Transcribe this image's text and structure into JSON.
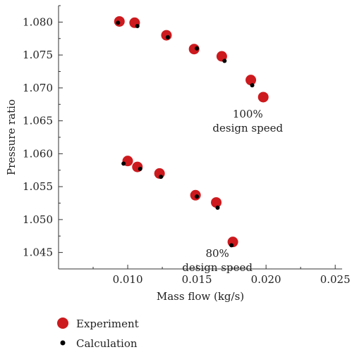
{
  "chart_data": {
    "type": "scatter",
    "xlabel": "Mass flow (kg/s)",
    "ylabel": "Pressure ratio",
    "xlim": [
      0.005,
      0.0255
    ],
    "ylim": [
      1.0425,
      1.0825
    ],
    "x_ticks": [
      0.01,
      0.015,
      0.02,
      0.025
    ],
    "x_tick_labels": [
      "0.010",
      "0.015",
      "0.020",
      "0.025"
    ],
    "y_ticks": [
      1.045,
      1.05,
      1.055,
      1.06,
      1.065,
      1.07,
      1.075,
      1.08
    ],
    "y_tick_labels": [
      "1.045",
      "1.050",
      "1.055",
      "1.060",
      "1.065",
      "1.070",
      "1.075",
      "1.080"
    ],
    "grid": false,
    "legend_position": "bottom-left",
    "series": [
      {
        "name": "Experiment",
        "color": "#cc1a1e",
        "marker": "large-circle",
        "points": [
          {
            "x": 0.0094,
            "y": 1.0801
          },
          {
            "x": 0.0105,
            "y": 1.0799
          },
          {
            "x": 0.0128,
            "y": 1.078
          },
          {
            "x": 0.0148,
            "y": 1.0759
          },
          {
            "x": 0.0168,
            "y": 1.0748
          },
          {
            "x": 0.0189,
            "y": 1.0712
          },
          {
            "x": 0.0198,
            "y": 1.0686
          },
          {
            "x": 0.01,
            "y": 1.0589
          },
          {
            "x": 0.0107,
            "y": 1.058
          },
          {
            "x": 0.0123,
            "y": 1.057
          },
          {
            "x": 0.0149,
            "y": 1.0537
          },
          {
            "x": 0.0164,
            "y": 1.0526
          },
          {
            "x": 0.0176,
            "y": 1.0466
          }
        ]
      },
      {
        "name": "Calculation",
        "color": "#000000",
        "marker": "small-dot",
        "points": [
          {
            "x": 0.0093,
            "y": 1.0799
          },
          {
            "x": 0.0107,
            "y": 1.0794
          },
          {
            "x": 0.0129,
            "y": 1.0777
          },
          {
            "x": 0.015,
            "y": 1.076
          },
          {
            "x": 0.017,
            "y": 1.0741
          },
          {
            "x": 0.019,
            "y": 1.0704
          },
          {
            "x": 0.0097,
            "y": 1.0585
          },
          {
            "x": 0.0109,
            "y": 1.0577
          },
          {
            "x": 0.0124,
            "y": 1.0565
          },
          {
            "x": 0.015,
            "y": 1.0535
          },
          {
            "x": 0.0165,
            "y": 1.0518
          },
          {
            "x": 0.0175,
            "y": 1.0461
          }
        ]
      }
    ],
    "annotations": [
      {
        "line1": "100%",
        "line2": "design speed",
        "x": 0.0197,
        "y": 1.0655
      },
      {
        "line1": "80%",
        "line2": "design speed",
        "x": 0.0175,
        "y": 1.0443
      }
    ]
  }
}
